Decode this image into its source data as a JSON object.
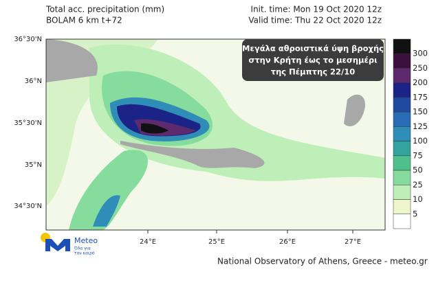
{
  "header": {
    "title": "Total acc. precipitation (mm)",
    "model": "BOLAM 6 km t+72",
    "init_time": "Init. time: Mon 19 Oct 2020 12z",
    "valid_time": "Valid time: Thu 22 Oct 2020 12z"
  },
  "map": {
    "lat_labels": [
      "36°30'N",
      "36°N",
      "35°30'N",
      "35°N",
      "34°30'N"
    ],
    "lon_labels": [
      "24°E",
      "25°E",
      "26°E",
      "27°E"
    ]
  },
  "annotation": {
    "lines": [
      "Μεγάλα αθροιστικά  ύψη βροχής",
      "στην Κρήτη έως το μεσημέρι",
      "της Πέμπτης 22/10"
    ]
  },
  "colorbar": {
    "labels": [
      "300",
      "250",
      "200",
      "175",
      "150",
      "125",
      "100",
      "75",
      "50",
      "25",
      "10",
      "5"
    ],
    "colors": [
      "#111111",
      "#3b0f3d",
      "#5e2a6e",
      "#1c2386",
      "#1f4aa0",
      "#2a6bb5",
      "#2f8db8",
      "#33a3a0",
      "#4fc08c",
      "#86dc9c",
      "#bfefb8",
      "#eef6cc",
      "#ffffff"
    ]
  },
  "logo": {
    "name": "Meteo",
    "tagline_1": "Όλα για",
    "tagline_2": "τον καιρό"
  },
  "footer": "National Observatory of Athens, Greece - meteo.gr"
}
